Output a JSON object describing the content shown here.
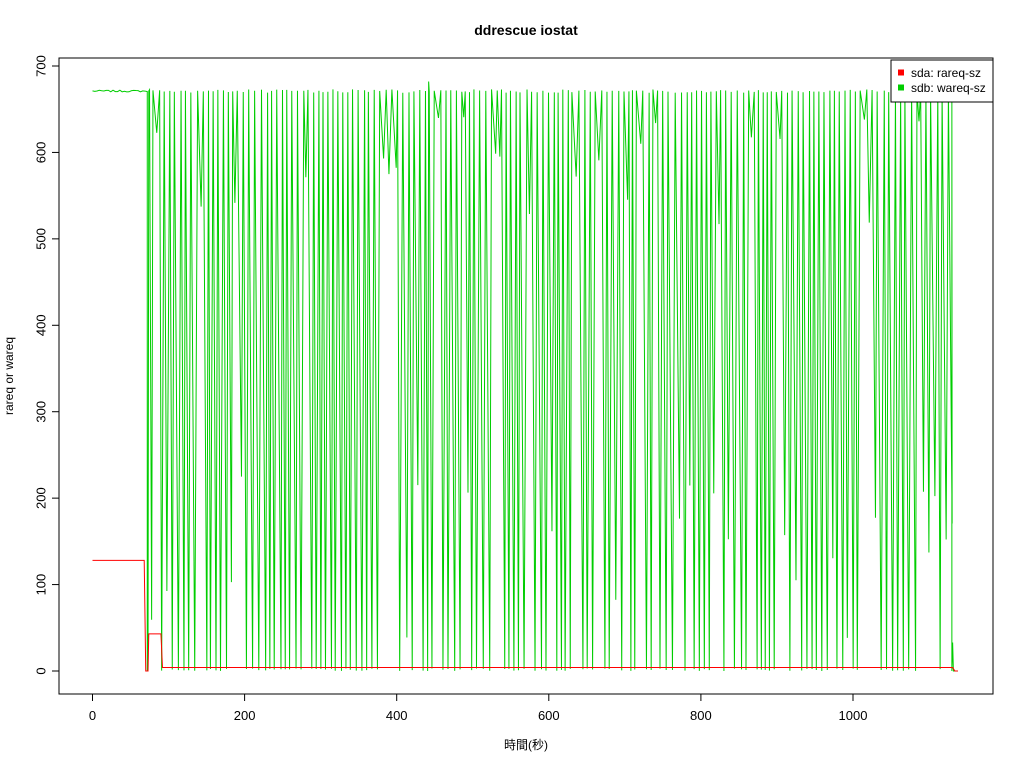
{
  "chart_data": {
    "type": "line",
    "title": "ddrescue iostat",
    "xlabel": "時間(秒)",
    "ylabel": "rareq or wareq",
    "xlim": [
      0,
      1140
    ],
    "ylim": [
      0,
      700
    ],
    "x_ticks": [
      0,
      200,
      400,
      600,
      800,
      1000
    ],
    "y_ticks": [
      0,
      100,
      200,
      300,
      400,
      500,
      600,
      700
    ],
    "grid": false,
    "legend_position": "top-right",
    "series": [
      {
        "name": "sda: rareq-sz",
        "color": "#ff0000",
        "points": [
          [
            0,
            128
          ],
          [
            68,
            128
          ],
          [
            70,
            0
          ],
          [
            73,
            0
          ],
          [
            74,
            43
          ],
          [
            90,
            43
          ],
          [
            92,
            4
          ],
          [
            1128,
            4
          ],
          [
            1131,
            4
          ],
          [
            1134,
            0
          ],
          [
            1138,
            0
          ]
        ]
      },
      {
        "name": "sdb: wareq-sz",
        "color": "#00cd00",
        "baseline": 671,
        "segments": [
          {
            "from": 0,
            "to": 72,
            "value": 671
          },
          {
            "from": 72,
            "to": 1132,
            "value": 671,
            "oscillating": true,
            "min": 0,
            "spacing": 4.2,
            "seed": 7
          },
          {
            "from": 1132,
            "to": 1138,
            "value": 0
          }
        ],
        "notable_points": [
          [
            442,
            682
          ],
          [
            1131,
            33
          ]
        ]
      }
    ]
  }
}
